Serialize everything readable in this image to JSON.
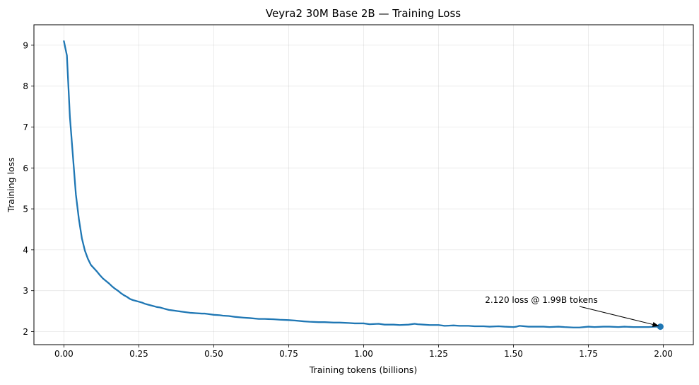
{
  "chart_data": {
    "type": "line",
    "title": "Veyra2 30M Base 2B — Training Loss",
    "xlabel": "Training tokens (billions)",
    "ylabel": "Training loss",
    "xlim": [
      -0.1,
      2.1
    ],
    "ylim": [
      1.68,
      9.5
    ],
    "x_ticks": [
      0.0,
      0.25,
      0.5,
      0.75,
      1.0,
      1.25,
      1.5,
      1.75,
      2.0
    ],
    "x_tick_labels": [
      "0.00",
      "0.25",
      "0.50",
      "0.75",
      "1.00",
      "1.25",
      "1.50",
      "1.75",
      "2.00"
    ],
    "y_ticks": [
      2,
      3,
      4,
      5,
      6,
      7,
      8,
      9
    ],
    "y_tick_labels": [
      "2",
      "3",
      "4",
      "5",
      "6",
      "7",
      "8",
      "9"
    ],
    "grid": true,
    "series": [
      {
        "color": "#1f77b4",
        "x": [
          0.0,
          0.01,
          0.02,
          0.03,
          0.04,
          0.05,
          0.06,
          0.07,
          0.08,
          0.09,
          0.1,
          0.11,
          0.12,
          0.13,
          0.14,
          0.15,
          0.16,
          0.17,
          0.18,
          0.19,
          0.2,
          0.21,
          0.22,
          0.23,
          0.24,
          0.25,
          0.26,
          0.27,
          0.28,
          0.29,
          0.3,
          0.31,
          0.32,
          0.33,
          0.34,
          0.35,
          0.36,
          0.37,
          0.38,
          0.39,
          0.4,
          0.42,
          0.44,
          0.46,
          0.47,
          0.48,
          0.5,
          0.52,
          0.53,
          0.55,
          0.57,
          0.6,
          0.62,
          0.65,
          0.67,
          0.7,
          0.72,
          0.75,
          0.77,
          0.8,
          0.82,
          0.85,
          0.87,
          0.9,
          0.92,
          0.95,
          0.97,
          1.0,
          1.02,
          1.05,
          1.07,
          1.1,
          1.12,
          1.15,
          1.17,
          1.18,
          1.2,
          1.22,
          1.25,
          1.27,
          1.3,
          1.32,
          1.35,
          1.37,
          1.4,
          1.42,
          1.45,
          1.47,
          1.5,
          1.51,
          1.52,
          1.55,
          1.57,
          1.6,
          1.62,
          1.65,
          1.67,
          1.7,
          1.72,
          1.75,
          1.77,
          1.8,
          1.82,
          1.85,
          1.87,
          1.9,
          1.92,
          1.95,
          1.97,
          1.99
        ],
        "y": [
          9.1,
          8.75,
          7.25,
          6.3,
          5.35,
          4.75,
          4.28,
          3.98,
          3.78,
          3.63,
          3.55,
          3.47,
          3.38,
          3.3,
          3.24,
          3.18,
          3.11,
          3.05,
          3.0,
          2.94,
          2.89,
          2.85,
          2.8,
          2.77,
          2.75,
          2.73,
          2.71,
          2.68,
          2.66,
          2.64,
          2.62,
          2.6,
          2.59,
          2.57,
          2.55,
          2.53,
          2.52,
          2.51,
          2.5,
          2.49,
          2.48,
          2.46,
          2.45,
          2.44,
          2.44,
          2.43,
          2.41,
          2.4,
          2.39,
          2.38,
          2.36,
          2.34,
          2.33,
          2.31,
          2.31,
          2.3,
          2.29,
          2.28,
          2.27,
          2.25,
          2.24,
          2.23,
          2.23,
          2.22,
          2.22,
          2.21,
          2.2,
          2.2,
          2.18,
          2.19,
          2.17,
          2.17,
          2.16,
          2.17,
          2.19,
          2.18,
          2.17,
          2.16,
          2.16,
          2.14,
          2.15,
          2.14,
          2.14,
          2.13,
          2.13,
          2.12,
          2.13,
          2.12,
          2.11,
          2.12,
          2.14,
          2.12,
          2.12,
          2.12,
          2.11,
          2.12,
          2.11,
          2.1,
          2.1,
          2.12,
          2.11,
          2.12,
          2.12,
          2.11,
          2.12,
          2.11,
          2.11,
          2.11,
          2.12,
          2.12
        ]
      }
    ],
    "annotation": {
      "text": "2.120 loss @ 1.99B tokens",
      "x": 1.99,
      "y": 2.12
    }
  }
}
